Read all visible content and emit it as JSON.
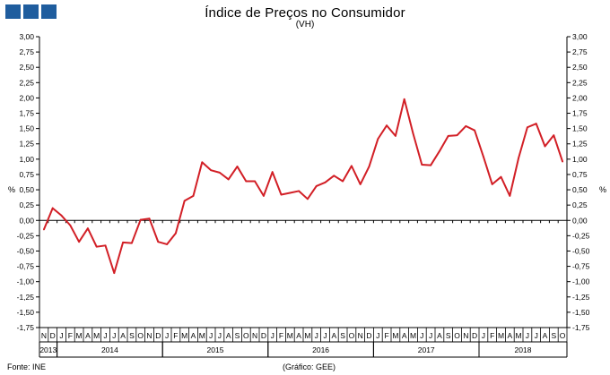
{
  "header": {
    "title": "Índice de Preços no Consumidor",
    "subtitle": "(VH)"
  },
  "footer": {
    "source": "Fonte: INE",
    "credit": "(Gráfico: GEE)"
  },
  "colors": {
    "line": "#d21f26",
    "logo": "#1f5d9e",
    "grid": "#000000"
  },
  "chart_data": {
    "type": "line",
    "title": "Índice de Preços no Consumidor",
    "subtitle": "(VH)",
    "ylabel": "%",
    "ylabel_right": "%",
    "ylim": [
      -1.75,
      3.0
    ],
    "yticks": [
      "3,00",
      "2,75",
      "2,50",
      "2,25",
      "2,00",
      "1,75",
      "1,50",
      "1,25",
      "1,00",
      "0,75",
      "0,50",
      "0,25",
      "0,00",
      "-0,25",
      "-0,50",
      "-0,75",
      "-1,00",
      "-1,25",
      "-1,50",
      "-1,75"
    ],
    "month_labels": [
      "N",
      "D",
      "J",
      "F",
      "M",
      "A",
      "M",
      "J",
      "J",
      "A",
      "S",
      "O",
      "N",
      "D",
      "J",
      "F",
      "M",
      "A",
      "M",
      "J",
      "J",
      "A",
      "S",
      "O",
      "N",
      "D",
      "J",
      "F",
      "M",
      "A",
      "M",
      "J",
      "J",
      "A",
      "S",
      "O",
      "N",
      "D",
      "J",
      "F",
      "M",
      "A",
      "M",
      "J",
      "J",
      "A",
      "S",
      "O",
      "N",
      "D",
      "J",
      "F",
      "M",
      "A",
      "M",
      "J",
      "J",
      "A",
      "S",
      "O"
    ],
    "years": [
      {
        "label": "2013",
        "start": 0,
        "end": 1
      },
      {
        "label": "2014",
        "start": 2,
        "end": 13
      },
      {
        "label": "2015",
        "start": 14,
        "end": 25
      },
      {
        "label": "2016",
        "start": 26,
        "end": 37
      },
      {
        "label": "2017",
        "start": 38,
        "end": 49
      },
      {
        "label": "2018",
        "start": 50,
        "end": 59
      }
    ],
    "series": [
      {
        "values": [
          -0.15,
          0.2,
          0.08,
          -0.08,
          -0.35,
          -0.13,
          -0.43,
          -0.41,
          -0.86,
          -0.36,
          -0.37,
          0.01,
          0.03,
          -0.35,
          -0.39,
          -0.21,
          0.32,
          0.4,
          0.95,
          0.82,
          0.78,
          0.67,
          0.88,
          0.64,
          0.64,
          0.4,
          0.79,
          0.42,
          0.45,
          0.48,
          0.35,
          0.56,
          0.62,
          0.73,
          0.64,
          0.89,
          0.59,
          0.88,
          1.33,
          1.55,
          1.38,
          1.98,
          1.42,
          0.91,
          0.9,
          1.13,
          1.38,
          1.39,
          1.54,
          1.47,
          1.04,
          0.59,
          0.71,
          0.4,
          1.02,
          1.52,
          1.58,
          1.21,
          1.39,
          0.96
        ]
      }
    ]
  }
}
